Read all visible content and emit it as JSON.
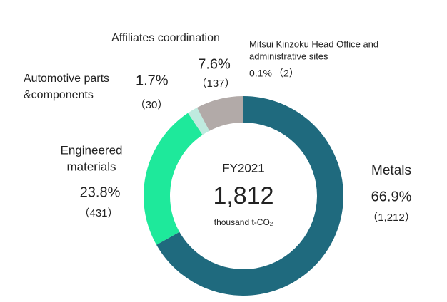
{
  "chart_data": {
    "type": "donut",
    "categories": [
      [
        "Metals"
      ],
      [
        "Engineered",
        "materials"
      ],
      [
        "Automotive parts",
        "&components"
      ],
      [
        "Affiliates coordination"
      ],
      [
        "Mitsui Kinzoku Head Office and",
        "administrative sites"
      ]
    ],
    "values": [
      66.9,
      23.8,
      1.7,
      7.6,
      0.1
    ],
    "value_labels": [
      "66.9%",
      "23.8%",
      "1.7%",
      "7.6%",
      "0.1%"
    ],
    "amounts": [
      1212,
      431,
      30,
      137,
      2
    ],
    "amount_labels": [
      "（1,212）",
      "（431）",
      "（30）",
      "（137）",
      "（2）"
    ],
    "colors": [
      "#1f6a7e",
      "#1ee99b",
      "#bfeadf",
      "#b2aaa8",
      "#6d6d6d"
    ],
    "center_title": "FY2021",
    "total": 1812,
    "total_label": "1,812",
    "unit": "thousand t-CO",
    "unit_subscript": "2"
  }
}
